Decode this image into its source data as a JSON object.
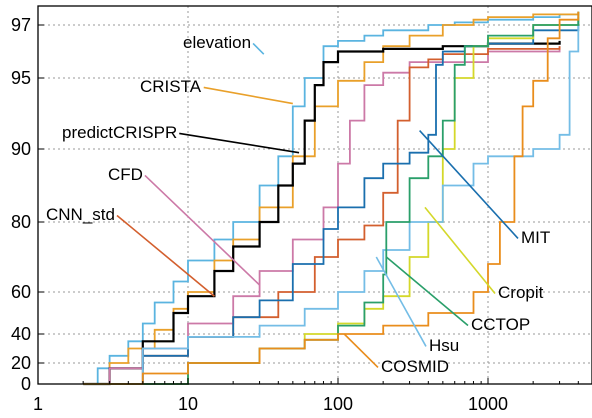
{
  "chart_data": {
    "type": "line",
    "title": "",
    "xlabel": "",
    "ylabel": "",
    "x_scale": "log",
    "xlim": [
      1,
      5000
    ],
    "x_ticks": [
      1,
      10,
      100,
      1000
    ],
    "x_tick_labels": [
      "1",
      "10",
      "100",
      "1000"
    ],
    "y_ticks": [
      0,
      20,
      40,
      60,
      80,
      90,
      95,
      97
    ],
    "y_tick_labels": [
      "0",
      "20",
      "40",
      "60",
      "80",
      "90",
      "95",
      "97"
    ],
    "grid": true,
    "legend": "inline-annotations",
    "series": [
      {
        "name": "elevation",
        "color": "#5ab4e0",
        "x": [
          2,
          2.5,
          3,
          4,
          5,
          6,
          8,
          10,
          15,
          20,
          30,
          40,
          50,
          60,
          80,
          100,
          150,
          200,
          400,
          600,
          1000,
          2000,
          3000,
          4000
        ],
        "y": [
          0,
          15,
          25,
          35,
          45,
          55,
          63,
          69,
          75,
          80,
          85,
          89,
          93,
          95,
          96.2,
          96.4,
          96.6,
          96.8,
          97.0,
          97.1,
          97.2,
          97.3,
          97.4,
          97.5
        ],
        "label_point": [
          32,
          95.9
        ]
      },
      {
        "name": "CRISTA",
        "color": "#e9a02a",
        "x": [
          2,
          3,
          4,
          6,
          8,
          10,
          15,
          20,
          30,
          50,
          70,
          100,
          150,
          200,
          300,
          500,
          800,
          1000,
          2000,
          4000
        ],
        "y": [
          0,
          20,
          30,
          42,
          52,
          60,
          69,
          75,
          82,
          89,
          93,
          94.8,
          95.6,
          96.2,
          96.6,
          97.0,
          97.2,
          97.3,
          97.4,
          97.5
        ],
        "label_point": [
          50,
          93.2
        ]
      },
      {
        "name": "predictCRISPR",
        "color": "#000000",
        "x": [
          2,
          3,
          5,
          8,
          10,
          15,
          20,
          30,
          40,
          50,
          60,
          70,
          80,
          100,
          200,
          500,
          1000,
          3000
        ],
        "y": [
          0,
          15,
          35,
          50,
          58,
          66,
          73,
          80,
          85,
          88,
          92,
          94.5,
          95.6,
          96.0,
          96.1,
          96.2,
          96.3,
          96.4
        ],
        "label_point": [
          55,
          89.5
        ]
      },
      {
        "name": "CFD",
        "color": "#cc79a7",
        "x": [
          2,
          3,
          5,
          10,
          20,
          30,
          50,
          80,
          100,
          120,
          150,
          200,
          300,
          1000,
          3000
        ],
        "y": [
          0,
          15,
          30,
          45,
          58,
          66,
          75,
          82,
          88,
          92,
          94.5,
          95.2,
          95.6,
          96.0,
          96.2
        ],
        "label_point": [
          30,
          62
        ]
      },
      {
        "name": "CNN_std",
        "color": "#d35f2e",
        "x": [
          2,
          5,
          10,
          20,
          40,
          70,
          100,
          150,
          200,
          250,
          300,
          400,
          500,
          1000,
          3000
        ],
        "y": [
          0,
          25,
          38,
          48,
          60,
          70,
          75,
          79,
          84,
          92,
          95.4,
          95.7,
          95.9,
          96.1,
          96.2
        ],
        "label_point": [
          15,
          58
        ]
      },
      {
        "name": "MIT",
        "color": "#1a6fae",
        "x": [
          2,
          5,
          10,
          20,
          30,
          50,
          80,
          100,
          150,
          200,
          300,
          400,
          450,
          500,
          700,
          1000,
          2000,
          4000
        ],
        "y": [
          0,
          25,
          38,
          48,
          56,
          68,
          78,
          82,
          86,
          88,
          89.5,
          91,
          95.5,
          96.0,
          96.2,
          96.3,
          96.8,
          97.2
        ],
        "label_point": [
          350,
          91.3
        ]
      },
      {
        "name": "Cropit",
        "color": "#d4d82a",
        "x": [
          2,
          10,
          30,
          60,
          100,
          150,
          200,
          300,
          400,
          500,
          600,
          800,
          1000,
          2000,
          4000
        ],
        "y": [
          0,
          20,
          30,
          40,
          45,
          52,
          58,
          70,
          80,
          90,
          95,
          96.2,
          96.5,
          97.0,
          97.4
        ],
        "label_point": [
          380,
          82
        ]
      },
      {
        "name": "Hsu",
        "color": "#74bde6",
        "x": [
          2,
          5,
          10,
          30,
          60,
          100,
          150,
          200,
          300,
          500,
          800,
          1000,
          2000,
          3000,
          3500,
          4000
        ],
        "y": [
          0,
          30,
          38,
          44,
          52,
          60,
          66,
          72,
          80,
          85,
          88,
          89,
          90,
          91,
          96,
          97.3
        ],
        "label_point": [
          180,
          70
        ]
      },
      {
        "name": "CCTOP",
        "color": "#2a9f6a",
        "x": [
          2,
          10,
          30,
          60,
          100,
          150,
          200,
          210,
          300,
          400,
          500,
          600,
          700,
          1000,
          2000,
          4000
        ],
        "y": [
          0,
          20,
          30,
          36,
          44,
          55,
          65,
          80,
          86,
          89,
          92,
          95.5,
          96.2,
          96.6,
          97.0,
          97.5
        ],
        "label_point": [
          210,
          70
        ]
      },
      {
        "name": "COSMID",
        "color": "#e98d1c",
        "x": [
          2,
          5,
          10,
          30,
          60,
          100,
          200,
          400,
          800,
          1000,
          1200,
          1500,
          1700,
          2000,
          2500,
          3000,
          4000
        ],
        "y": [
          0,
          10,
          20,
          30,
          36,
          40,
          44,
          50,
          60,
          68,
          80,
          89,
          93,
          94.8,
          96.5,
          97.2,
          97.5
        ],
        "label_point": [
          110,
          40
        ]
      }
    ],
    "annotations": [
      {
        "text": "elevation",
        "series": "elevation",
        "anchor": "end"
      },
      {
        "text": "CRISTA",
        "series": "CRISTA",
        "anchor": "end"
      },
      {
        "text": "predictCRISPR",
        "series": "predictCRISPR",
        "anchor": "end"
      },
      {
        "text": "CFD",
        "series": "CFD",
        "anchor": "end"
      },
      {
        "text": "CNN_std",
        "series": "CNN_std",
        "anchor": "end"
      },
      {
        "text": "MIT",
        "series": "MIT",
        "anchor": "start"
      },
      {
        "text": "Cropit",
        "series": "Cropit",
        "anchor": "start"
      },
      {
        "text": "CCTOP",
        "series": "CCTOP",
        "anchor": "start"
      },
      {
        "text": "Hsu",
        "series": "Hsu",
        "anchor": "start"
      },
      {
        "text": "COSMID",
        "series": "COSMID",
        "anchor": "start"
      }
    ]
  }
}
